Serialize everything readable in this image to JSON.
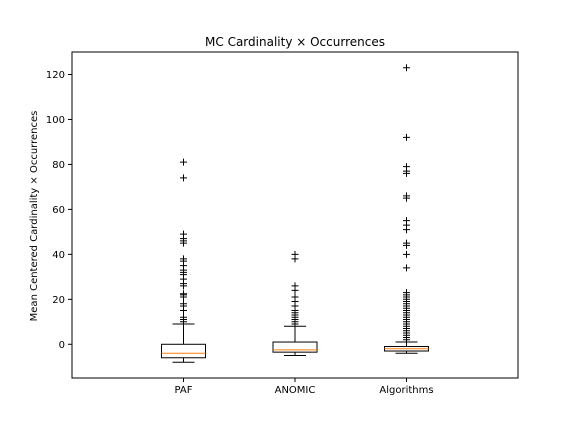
{
  "chart_data": {
    "type": "box",
    "title": "MC Cardinality × Occurrences",
    "xlabel": "",
    "ylabel": "Mean Centered Cardinality × Occurrences",
    "ylim": [
      -15,
      130
    ],
    "yticks": [
      0,
      20,
      40,
      60,
      80,
      100,
      120
    ],
    "grid": false,
    "colors": {
      "box": "#000000",
      "median": "#ff7f0e",
      "flier": "#000000"
    },
    "categories": [
      "PAF",
      "ANOMIC",
      "Algorithms"
    ],
    "boxes": [
      {
        "name": "PAF",
        "whisker_low": -8,
        "q1": -6,
        "median": -4,
        "q3": 0,
        "whisker_high": 9,
        "fliers": [
          10,
          11,
          12,
          15,
          17,
          18,
          21,
          22,
          22.5,
          26,
          27,
          29,
          31,
          32,
          33,
          35,
          37,
          38,
          45,
          46,
          47,
          49,
          74,
          81
        ]
      },
      {
        "name": "ANOMIC",
        "whisker_low": -5,
        "q1": -3.5,
        "median": -2.5,
        "q3": 1,
        "whisker_high": 8,
        "fliers": [
          9,
          10,
          11,
          12,
          13,
          14,
          15,
          17,
          19,
          21,
          24,
          26,
          38,
          40
        ]
      },
      {
        "name": "Algorithms",
        "whisker_low": -4,
        "q1": -3,
        "median": -2,
        "q3": -1,
        "whisker_high": 1,
        "fliers": [
          2,
          3,
          4,
          5,
          6,
          7,
          8,
          9,
          10,
          11,
          12,
          13,
          14,
          15,
          16,
          17,
          18,
          19,
          20,
          21,
          22,
          23,
          34,
          40,
          44,
          45,
          51,
          53,
          55,
          65,
          66,
          76,
          77,
          79,
          92,
          123
        ]
      }
    ]
  }
}
